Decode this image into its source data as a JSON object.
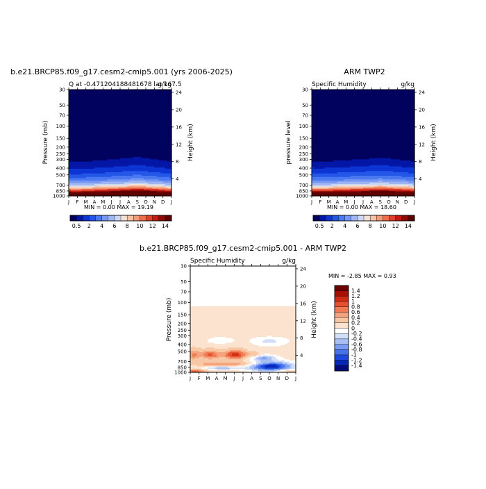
{
  "panel_left": {
    "title": "b.e21.BRCP85.f09_g17.cesm2-cmip5.001 (yrs 2006-2025)",
    "subtitle_left": "Q  at -0.471204188481678 lat 167.5",
    "subtitle_right": "g/kg",
    "ylabel": "Pressure (mb)",
    "ylabel_right": "Height (km)",
    "minmax": "MIN =      0.00 MAX =    19.19"
  },
  "panel_right": {
    "title": "ARM TWP2",
    "subtitle_left": "Specific Humidity",
    "subtitle_right": "g/kg",
    "ylabel": "pressure level",
    "ylabel_right": "Height (km)",
    "minmax": "MIN =      0.00 MAX =    18.60"
  },
  "panel_diff": {
    "title": "b.e21.BRCP85.f09_g17.cesm2-cmip5.001 - ARM TWP2",
    "subtitle_left": "Specific Humidity",
    "subtitle_right": "g/kg",
    "ylabel": "Pressure (mb)",
    "ylabel_right": "Height (km)",
    "minmax": "MIN =   -2.85 MAX =     0.93"
  },
  "colors": {
    "q_scale": [
      "#00025e",
      "#0416a6",
      "#0d35d4",
      "#2456e8",
      "#4a78f0",
      "#7497f3",
      "#9fb5f3",
      "#cbd6f1",
      "#f3e1d3",
      "#f6c1a5",
      "#f49a77",
      "#ee6e4c",
      "#dd412b",
      "#c01a12",
      "#8e0a05",
      "#5c0000"
    ],
    "diff_scale": [
      "#030b7a",
      "#0626b8",
      "#1c48dd",
      "#4472ec",
      "#7a9cf2",
      "#a8bff3",
      "#d1def7",
      "#ffffff",
      "#fbe3cf",
      "#f8c8a6",
      "#f5a37c",
      "#f07b53",
      "#e6512d",
      "#cf2a12",
      "#a60f03",
      "#6e0000"
    ]
  },
  "chart_data": [
    {
      "type": "heatmap",
      "name": "model",
      "x": [
        "J",
        "F",
        "M",
        "A",
        "M",
        "J",
        "J",
        "A",
        "S",
        "O",
        "N",
        "D",
        "J"
      ],
      "pressure_ticks": [
        30,
        50,
        70,
        100,
        150,
        200,
        250,
        300,
        400,
        500,
        700,
        850,
        1000
      ],
      "height_ticks": [
        24,
        20,
        16,
        12,
        8,
        4
      ],
      "colorbar_levels": [
        "0.5",
        "2",
        "4",
        "6",
        "8",
        "10",
        "12",
        "14"
      ],
      "colorbar_bounds": [
        0,
        0.5,
        1,
        2,
        3,
        4,
        5,
        6,
        7,
        8,
        9,
        10,
        11,
        12,
        13,
        14,
        15
      ],
      "ylim": [
        1000,
        30
      ],
      "profile": [
        {
          "p": 30,
          "q": 0
        },
        {
          "p": 200,
          "q": 0.05
        },
        {
          "p": 300,
          "q": 0.4
        },
        {
          "p": 400,
          "q": 1.0
        },
        {
          "p": 500,
          "q": 2.3
        },
        {
          "p": 600,
          "q": 4.0
        },
        {
          "p": 700,
          "q": 6.2
        },
        {
          "p": 775,
          "q": 9.0
        },
        {
          "p": 850,
          "q": 12.5
        },
        {
          "p": 925,
          "q": 15.6
        },
        {
          "p": 1000,
          "q": 18.0
        }
      ],
      "seasonal_shift_hpa": [
        -10,
        -14,
        -8,
        0,
        6,
        14,
        22,
        30,
        36,
        30,
        16,
        4,
        -10
      ],
      "min": 0.0,
      "max": 19.19
    },
    {
      "type": "heatmap",
      "name": "observations",
      "x": [
        "J",
        "F",
        "M",
        "A",
        "M",
        "J",
        "J",
        "A",
        "S",
        "O",
        "N",
        "D",
        "J"
      ],
      "pressure_ticks": [
        30,
        50,
        70,
        100,
        150,
        200,
        250,
        300,
        400,
        500,
        700,
        850,
        1000
      ],
      "height_ticks": [
        24,
        20,
        16,
        12,
        8,
        4
      ],
      "colorbar_levels": [
        "0.5",
        "2",
        "4",
        "6",
        "8",
        "10",
        "12",
        "14"
      ],
      "colorbar_bounds": [
        0,
        0.5,
        1,
        2,
        3,
        4,
        5,
        6,
        7,
        8,
        9,
        10,
        11,
        12,
        13,
        14,
        15
      ],
      "ylim": [
        1000,
        30
      ],
      "profile": [
        {
          "p": 30,
          "q": 0
        },
        {
          "p": 200,
          "q": 0.05
        },
        {
          "p": 300,
          "q": 0.4
        },
        {
          "p": 400,
          "q": 1.05
        },
        {
          "p": 500,
          "q": 2.4
        },
        {
          "p": 600,
          "q": 4.1
        },
        {
          "p": 700,
          "q": 6.3
        },
        {
          "p": 775,
          "q": 9.2
        },
        {
          "p": 850,
          "q": 12.6
        },
        {
          "p": 925,
          "q": 15.4
        },
        {
          "p": 1000,
          "q": 17.6
        }
      ],
      "seasonal_shift_hpa": [
        -8,
        -12,
        -6,
        0,
        4,
        10,
        16,
        22,
        26,
        22,
        12,
        2,
        -8
      ],
      "min": 0.0,
      "max": 18.6
    },
    {
      "type": "heatmap",
      "name": "difference",
      "x": [
        "J",
        "F",
        "M",
        "A",
        "M",
        "J",
        "J",
        "A",
        "S",
        "O",
        "N",
        "D",
        "J"
      ],
      "pressure_ticks": [
        30,
        50,
        70,
        100,
        150,
        200,
        250,
        300,
        400,
        500,
        700,
        850,
        1000
      ],
      "height_ticks": [
        24,
        20,
        16,
        12,
        8,
        4
      ],
      "colorbar_levels": [
        "1.4",
        "1.2",
        "1",
        "0.8",
        "0.6",
        "0.4",
        "0.2",
        "0",
        "-0.2",
        "-0.4",
        "-0.6",
        "-0.8",
        "-1",
        "-1.2",
        "-1.4"
      ],
      "colorbar_bounds": [
        -1.6,
        -1.4,
        -1.2,
        -1.0,
        -0.8,
        -0.6,
        -0.4,
        -0.2,
        0,
        0.2,
        0.4,
        0.6,
        0.8,
        1.0,
        1.2,
        1.4,
        1.6
      ],
      "ylim": [
        1000,
        30
      ],
      "min": -2.85,
      "max": 0.93
    }
  ]
}
